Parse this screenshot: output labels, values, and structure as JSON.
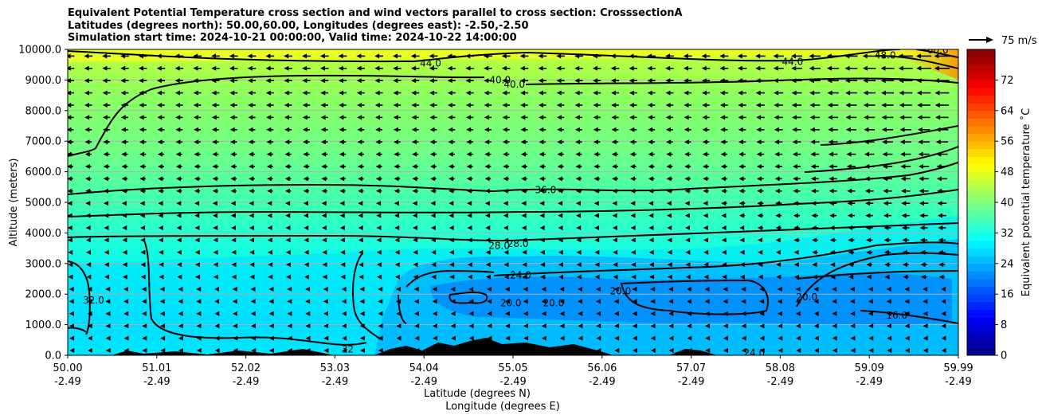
{
  "title_lines": [
    "Equivalent Potential Temperature cross section and wind vectors parallel to cross section: CrosssectionA",
    "Latitudes (degrees north): 50.00,60.00, Longitudes (degrees east): -2.50,-2.50",
    "Simulation start time: 2024-10-21 00:00:00, Valid time: 2024-10-22 14:00:00"
  ],
  "chart_data": {
    "type": "heatmap",
    "ylabel": "Altitude (meters)",
    "xlabel_lines": [
      "Latitude (degrees N)",
      "Longitude (degrees E)"
    ],
    "ylim": [
      0,
      10000
    ],
    "y_ticks": [
      0,
      1000,
      2000,
      3000,
      4000,
      5000,
      6000,
      7000,
      8000,
      9000,
      10000
    ],
    "y_tick_labels": [
      "0.0",
      "1000.0",
      "2000.0",
      "3000.0",
      "4000.0",
      "5000.0",
      "6000.0",
      "7000.0",
      "8000.0",
      "9000.0",
      "10000.0"
    ],
    "x_ticks": [
      {
        "lat": "50.00",
        "lon": "-2.49"
      },
      {
        "lat": "51.01",
        "lon": "-2.49"
      },
      {
        "lat": "52.02",
        "lon": "-2.49"
      },
      {
        "lat": "53.03",
        "lon": "-2.49"
      },
      {
        "lat": "54.04",
        "lon": "-2.49"
      },
      {
        "lat": "55.05",
        "lon": "-2.49"
      },
      {
        "lat": "56.06",
        "lon": "-2.49"
      },
      {
        "lat": "57.07",
        "lon": "-2.49"
      },
      {
        "lat": "58.08",
        "lon": "-2.49"
      },
      {
        "lat": "59.09",
        "lon": "-2.49"
      },
      {
        "lat": "59.99",
        "lon": "-2.49"
      }
    ],
    "x_range": [
      50.0,
      59.99
    ],
    "grid": "horizontal",
    "colorbar": {
      "label": "Equivalent potential temperature ˚C",
      "range": [
        0,
        80
      ],
      "ticks": [
        0,
        8,
        16,
        24,
        32,
        40,
        48,
        56,
        64,
        72
      ],
      "colormap": "jet"
    },
    "quiver_key": {
      "label": "75 m/s"
    },
    "contour_labels": [
      {
        "text": "44.0",
        "lat": 54.07,
        "alt": 9550
      },
      {
        "text": "44.0",
        "lat": 58.13,
        "alt": 9600
      },
      {
        "text": "48.0",
        "lat": 59.17,
        "alt": 9800
      },
      {
        "text": "60.0",
        "lat": 59.76,
        "alt": 9980
      },
      {
        "text": "40.0",
        "lat": 54.85,
        "alt": 9000
      },
      {
        "text": "40.0",
        "lat": 55.01,
        "alt": 8850
      },
      {
        "text": "36.0",
        "lat": 55.36,
        "alt": 5400
      },
      {
        "text": "28.0",
        "lat": 54.84,
        "alt": 3580
      },
      {
        "text": "28.0",
        "lat": 55.05,
        "alt": 3640
      },
      {
        "text": "24.0",
        "lat": 55.08,
        "alt": 2620
      },
      {
        "text": "20.0",
        "lat": 54.97,
        "alt": 1700
      },
      {
        "text": "20.0",
        "lat": 55.45,
        "alt": 1700
      },
      {
        "text": "20.0",
        "lat": 56.2,
        "alt": 2100
      },
      {
        "text": "20.0",
        "lat": 58.29,
        "alt": 1900
      },
      {
        "text": "16.0",
        "lat": 59.3,
        "alt": 1300
      },
      {
        "text": "32.0",
        "lat": 50.29,
        "alt": 1800
      },
      {
        "text": "32",
        "lat": 53.14,
        "alt": 200
      },
      {
        "text": "24.0",
        "lat": 57.7,
        "alt": 80
      }
    ]
  }
}
